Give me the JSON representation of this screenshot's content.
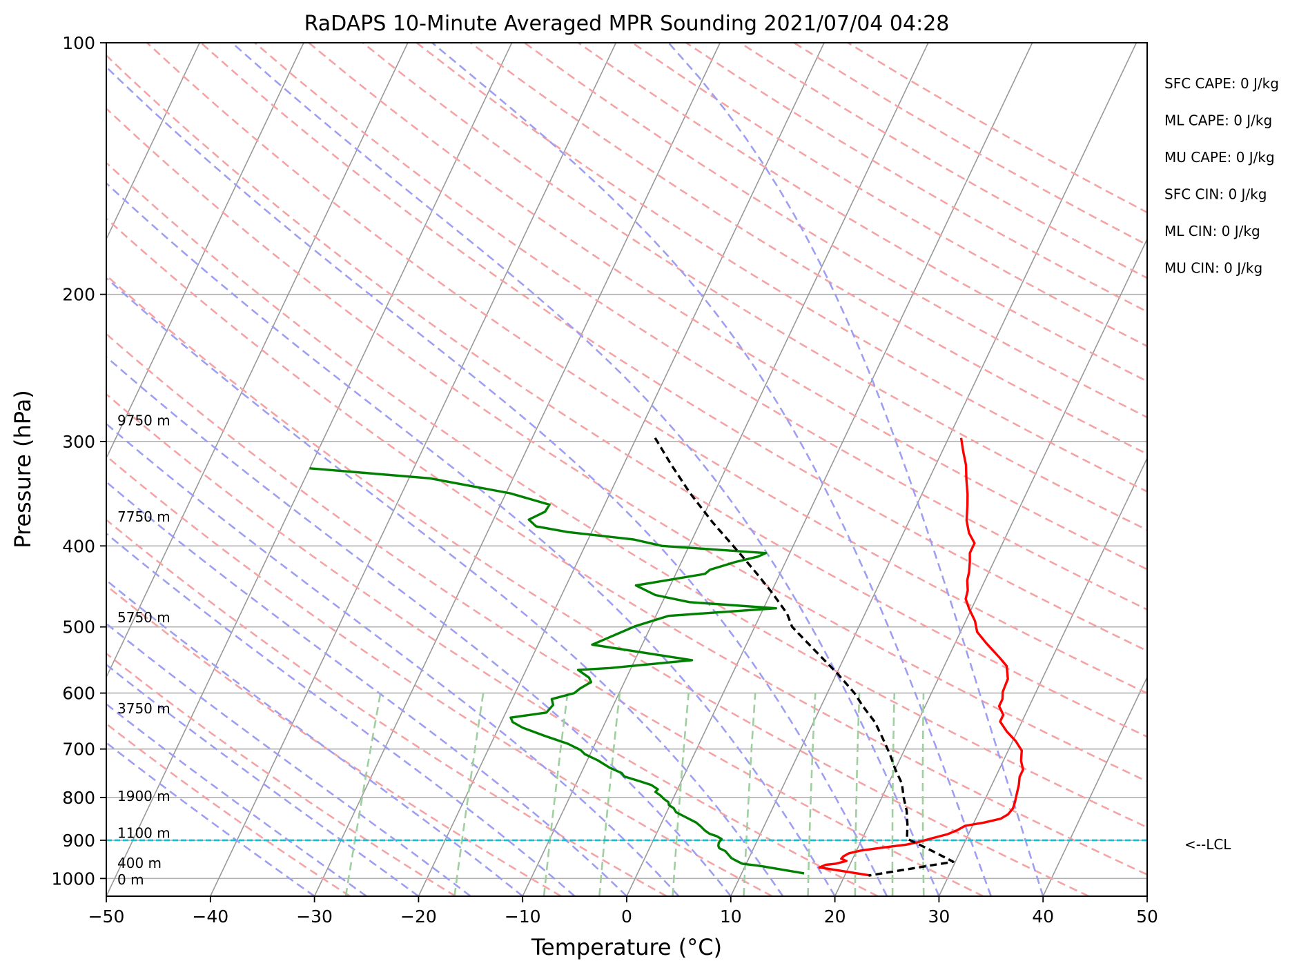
{
  "chart_data": {
    "type": "line",
    "title": "RaDAPS 10-Minute Averaged MPR Sounding 2021/07/04 04:28",
    "xlabel": "Temperature (°C)",
    "ylabel": "Pressure (hPa)",
    "xlim": [
      -50,
      50
    ],
    "ylim": [
      1050,
      100
    ],
    "y_scale": "log",
    "x_ticks": [
      "−50",
      "−40",
      "−30",
      "−20",
      "−10",
      "0",
      "10",
      "20",
      "30",
      "40",
      "50"
    ],
    "y_ticks": [
      {
        "p": 100,
        "label": "100"
      },
      {
        "p": 200,
        "label": "200"
      },
      {
        "p": 300,
        "label": "300"
      },
      {
        "p": 400,
        "label": "400"
      },
      {
        "p": 500,
        "label": "500"
      },
      {
        "p": 600,
        "label": "600"
      },
      {
        "p": 700,
        "label": "700"
      },
      {
        "p": 800,
        "label": "800"
      },
      {
        "p": 900,
        "label": "900"
      },
      {
        "p": 1000,
        "label": "1000"
      }
    ],
    "grid": true,
    "colors": {
      "temperature": "#ff0000",
      "dewpoint": "#008000",
      "parcel": "#000000",
      "lcl": "#17becf",
      "isotherm": "#999999",
      "dry_adiabat": "#f4a4a4",
      "moist_adiabat": "#9f9ff2",
      "mixing_ratio": "#9fcf9f"
    },
    "series": [
      {
        "key": "temperature",
        "points": [
          [
            11.2,
            297
          ],
          [
            12.0,
            308
          ],
          [
            12.9,
            320
          ],
          [
            13.6,
            333
          ],
          [
            14.4,
            347
          ],
          [
            14.9,
            358
          ],
          [
            15.5,
            373
          ],
          [
            16.3,
            386
          ],
          [
            17.3,
            397
          ],
          [
            17.3,
            408
          ],
          [
            17.7,
            418
          ],
          [
            18.1,
            430
          ],
          [
            18.3,
            440
          ],
          [
            18.8,
            452
          ],
          [
            19.0,
            463
          ],
          [
            19.8,
            476
          ],
          [
            20.9,
            492
          ],
          [
            21.6,
            507
          ],
          [
            23.0,
            523
          ],
          [
            25.0,
            545
          ],
          [
            26.0,
            557
          ],
          [
            26.7,
            577
          ],
          [
            26.8,
            598
          ],
          [
            27.1,
            610
          ],
          [
            27.1,
            622
          ],
          [
            27.9,
            637
          ],
          [
            27.9,
            649
          ],
          [
            29.0,
            667
          ],
          [
            30.3,
            685
          ],
          [
            31.3,
            703
          ],
          [
            31.7,
            723
          ],
          [
            32.3,
            741
          ],
          [
            32.3,
            756
          ],
          [
            32.6,
            773
          ],
          [
            32.8,
            792
          ],
          [
            33.0,
            810
          ],
          [
            33.1,
            824
          ],
          [
            32.9,
            838
          ],
          [
            32.4,
            848
          ],
          [
            31.0,
            857
          ],
          [
            29.3,
            865
          ],
          [
            28.7,
            876
          ],
          [
            28.0,
            885
          ],
          [
            26.7,
            895
          ],
          [
            25.5,
            905
          ],
          [
            24.5,
            911
          ],
          [
            22.5,
            918
          ],
          [
            20.4,
            926
          ],
          [
            19.4,
            933
          ],
          [
            19.0,
            941
          ],
          [
            18.9,
            947
          ],
          [
            19.5,
            953
          ],
          [
            18.6,
            960
          ],
          [
            17.7,
            963
          ],
          [
            17.2,
            970
          ],
          [
            22.5,
            992
          ]
        ]
      },
      {
        "key": "dewpoint",
        "points": [
          [
            -50.0,
            323
          ],
          [
            -38.0,
            332
          ],
          [
            -29.6,
            346
          ],
          [
            -25.3,
            357
          ],
          [
            -25.4,
            364
          ],
          [
            -26.6,
            372
          ],
          [
            -25.6,
            379
          ],
          [
            -22.3,
            385
          ],
          [
            -15.6,
            393
          ],
          [
            -12.6,
            400
          ],
          [
            -2.3,
            408
          ],
          [
            -2.9,
            412
          ],
          [
            -4.8,
            418
          ],
          [
            -6.9,
            427
          ],
          [
            -7.2,
            432
          ],
          [
            -13.3,
            446
          ],
          [
            -11.0,
            458
          ],
          [
            -7.4,
            467
          ],
          [
            1.2,
            475
          ],
          [
            -8.8,
            485
          ],
          [
            -11.5,
            499
          ],
          [
            -14.8,
            525
          ],
          [
            -4.5,
            548
          ],
          [
            -12.0,
            560
          ],
          [
            -15.0,
            563
          ],
          [
            -13.6,
            575
          ],
          [
            -13.2,
            582
          ],
          [
            -14.0,
            593
          ],
          [
            -14.3,
            600
          ],
          [
            -16.2,
            610
          ],
          [
            -15.8,
            620
          ],
          [
            -16.1,
            633
          ],
          [
            -19.3,
            642
          ],
          [
            -18.9,
            650
          ],
          [
            -17.7,
            660
          ],
          [
            -15.2,
            675
          ],
          [
            -12.6,
            690
          ],
          [
            -11.1,
            702
          ],
          [
            -10.5,
            710
          ],
          [
            -9.0,
            722
          ],
          [
            -7.5,
            737
          ],
          [
            -6.1,
            748
          ],
          [
            -5.7,
            755
          ],
          [
            -4.0,
            765
          ],
          [
            -2.7,
            773
          ],
          [
            -1.9,
            782
          ],
          [
            -2.0,
            788
          ],
          [
            -1.4,
            795
          ],
          [
            -0.8,
            804
          ],
          [
            -0.3,
            810
          ],
          [
            -0.1,
            817
          ],
          [
            0.5,
            824
          ],
          [
            0.9,
            833
          ],
          [
            1.6,
            840
          ],
          [
            2.3,
            847
          ],
          [
            3.3,
            857
          ],
          [
            3.9,
            866
          ],
          [
            4.5,
            876
          ],
          [
            5.1,
            884
          ],
          [
            5.9,
            890
          ],
          [
            6.5,
            897
          ],
          [
            6.4,
            906
          ],
          [
            6.5,
            914
          ],
          [
            6.7,
            920
          ],
          [
            7.4,
            927
          ],
          [
            7.9,
            937
          ],
          [
            8.3,
            945
          ],
          [
            8.7,
            950
          ],
          [
            9.6,
            960
          ],
          [
            11.4,
            966
          ],
          [
            16.0,
            986
          ]
        ]
      },
      {
        "key": "parcel",
        "points": [
          [
            -18.2,
            297
          ],
          [
            -15.4,
            320
          ],
          [
            -12.3,
            346
          ],
          [
            -8.8,
            375
          ],
          [
            -4.6,
            410
          ],
          [
            -2.2,
            432
          ],
          [
            0.2,
            456
          ],
          [
            2.5,
            482
          ],
          [
            3.6,
            500
          ],
          [
            7.0,
            535
          ],
          [
            10.2,
            570
          ],
          [
            12.6,
            600
          ],
          [
            14.0,
            622
          ],
          [
            15.9,
            650
          ],
          [
            17.4,
            680
          ],
          [
            18.8,
            710
          ],
          [
            20.0,
            740
          ],
          [
            21.3,
            770
          ],
          [
            22.1,
            800
          ],
          [
            23.0,
            830
          ],
          [
            23.7,
            862
          ],
          [
            24.3,
            896
          ],
          [
            27.1,
            925
          ],
          [
            29.8,
            955
          ],
          [
            22.3,
            992
          ]
        ]
      }
    ],
    "lcl_pressure": 900,
    "lcl_label": "<--LCL",
    "height_labels": [
      {
        "label": "9750 m",
        "p": 283
      },
      {
        "label": "7750 m",
        "p": 369
      },
      {
        "label": "5750 m",
        "p": 487
      },
      {
        "label": "3750 m",
        "p": 626
      },
      {
        "label": "1900 m",
        "p": 797
      },
      {
        "label": "1100 m",
        "p": 882
      },
      {
        "label": "400 m",
        "p": 958
      },
      {
        "label": "0 m",
        "p": 1003
      }
    ],
    "annotations": [
      "SFC CAPE: 0 J/kg",
      "ML CAPE: 0 J/kg",
      "MU CAPE: 0 J/kg",
      "SFC CIN: 0 J/kg",
      "ML CIN: 0 J/kg",
      "MU CIN: 0 J/kg"
    ]
  }
}
